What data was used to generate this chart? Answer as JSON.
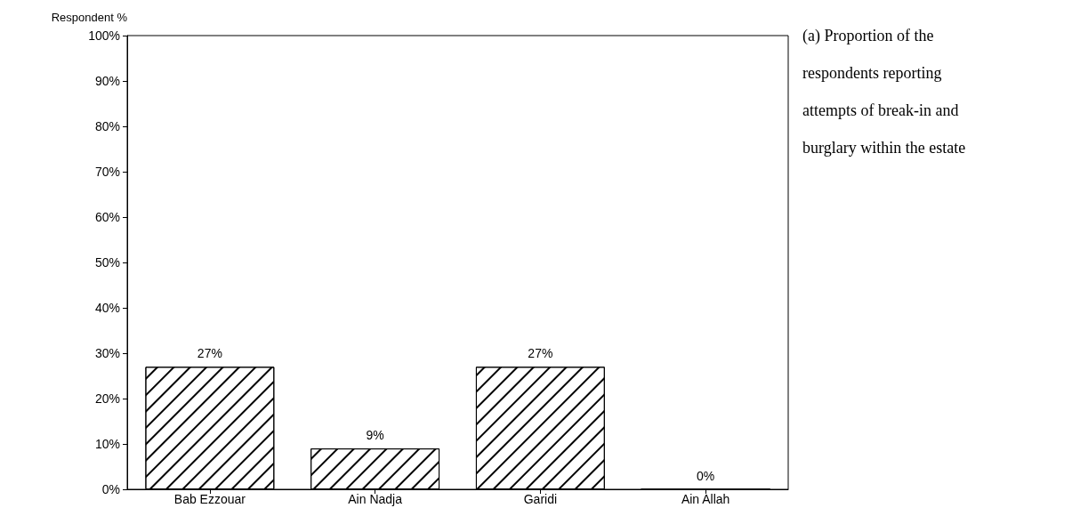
{
  "chart_data": {
    "type": "bar",
    "title": "(a) Proportion of the respondents reporting attempts of break-in and burglary within the estate",
    "ylabel": "Respondent %",
    "categories": [
      "Bab Ezzouar",
      "Ain Nadja",
      "Garidi",
      "Ain Allah"
    ],
    "values": [
      27,
      9,
      27,
      0
    ],
    "color": "#000000",
    "value_labels": [
      "27%",
      "9%",
      "27%",
      "0%"
    ],
    "ylim": [
      0,
      100
    ],
    "yticks": [
      {
        "value": 0,
        "label": "0%"
      },
      {
        "value": 10,
        "label": "10%"
      },
      {
        "value": 20,
        "label": "20%"
      },
      {
        "value": 30,
        "label": "30%"
      },
      {
        "value": 40,
        "label": "40%"
      },
      {
        "value": 50,
        "label": "50%"
      },
      {
        "value": 60,
        "label": "60%"
      },
      {
        "value": 70,
        "label": "70%"
      },
      {
        "value": 80,
        "label": "80%"
      },
      {
        "value": 90,
        "label": "90%"
      },
      {
        "value": 100,
        "label": "100%"
      }
    ],
    "grid": false
  }
}
